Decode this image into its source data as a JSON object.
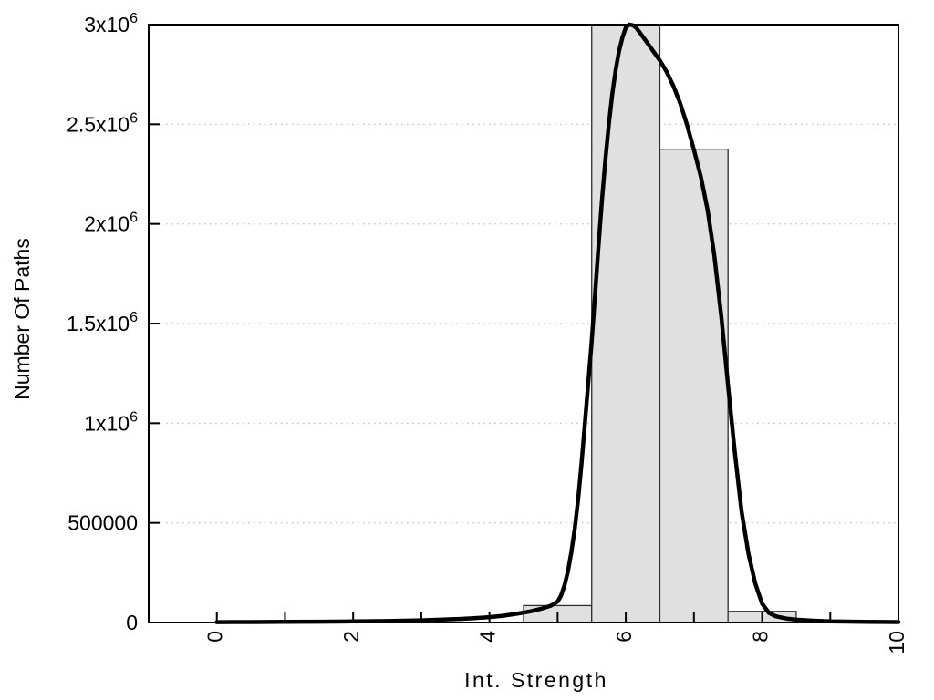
{
  "chart_data": {
    "type": "bar",
    "subtype": "histogram-with-fit-curve",
    "title": "",
    "xlabel": "Int. Strength",
    "ylabel": "Number Of Paths",
    "xlim": [
      -1,
      10
    ],
    "ylim": [
      0,
      3000000
    ],
    "grid": "horizontal-dotted",
    "legend": "none",
    "x_tick_label_rotation": -90,
    "x_ticks": [
      {
        "value": 0,
        "label": "0"
      },
      {
        "value": 1,
        "label": ""
      },
      {
        "value": 2,
        "label": "2"
      },
      {
        "value": 3,
        "label": ""
      },
      {
        "value": 4,
        "label": "4"
      },
      {
        "value": 5,
        "label": ""
      },
      {
        "value": 6,
        "label": "6"
      },
      {
        "value": 7,
        "label": ""
      },
      {
        "value": 8,
        "label": "8"
      },
      {
        "value": 9,
        "label": ""
      },
      {
        "value": 10,
        "label": "10"
      }
    ],
    "y_ticks": [
      {
        "value": 0,
        "label": "0",
        "sup": ""
      },
      {
        "value": 500000,
        "label": "500000",
        "sup": ""
      },
      {
        "value": 1000000,
        "label": "1x10",
        "sup": "6"
      },
      {
        "value": 1500000,
        "label": "1.5x10",
        "sup": "6"
      },
      {
        "value": 2000000,
        "label": "2x10",
        "sup": "6"
      },
      {
        "value": 2500000,
        "label": "2.5x10",
        "sup": "6"
      },
      {
        "value": 3000000,
        "label": "3x10",
        "sup": "6"
      }
    ],
    "bars": [
      {
        "x_left": 4.5,
        "x_right": 5.5,
        "count": 85000
      },
      {
        "x_left": 5.5,
        "x_right": 6.5,
        "count": 3000000
      },
      {
        "x_left": 6.5,
        "x_right": 7.5,
        "count": 2375000
      },
      {
        "x_left": 7.5,
        "x_right": 8.5,
        "count": 56000
      }
    ],
    "curve_points": [
      [
        0,
        2000
      ],
      [
        0.5,
        2500
      ],
      [
        1,
        3200
      ],
      [
        1.5,
        4200
      ],
      [
        2,
        5500
      ],
      [
        2.5,
        7500
      ],
      [
        3,
        11000
      ],
      [
        3.5,
        17000
      ],
      [
        3.75,
        21000
      ],
      [
        4,
        27000
      ],
      [
        4.2,
        34000
      ],
      [
        4.4,
        44000
      ],
      [
        4.6,
        56000
      ],
      [
        4.75,
        68000
      ],
      [
        4.9,
        84000
      ],
      [
        5.0,
        105000
      ],
      [
        5.05,
        135000
      ],
      [
        5.1,
        185000
      ],
      [
        5.15,
        255000
      ],
      [
        5.2,
        350000
      ],
      [
        5.25,
        465000
      ],
      [
        5.3,
        615000
      ],
      [
        5.35,
        795000
      ],
      [
        5.4,
        1000000
      ],
      [
        5.45,
        1205000
      ],
      [
        5.5,
        1410000
      ],
      [
        5.55,
        1650000
      ],
      [
        5.6,
        1890000
      ],
      [
        5.65,
        2115000
      ],
      [
        5.7,
        2320000
      ],
      [
        5.75,
        2495000
      ],
      [
        5.8,
        2645000
      ],
      [
        5.85,
        2770000
      ],
      [
        5.9,
        2865000
      ],
      [
        5.95,
        2935000
      ],
      [
        6.0,
        2985000
      ],
      [
        6.05,
        3000000
      ],
      [
        6.1,
        2997000
      ],
      [
        6.15,
        2985000
      ],
      [
        6.2,
        2963000
      ],
      [
        6.3,
        2916000
      ],
      [
        6.4,
        2868000
      ],
      [
        6.5,
        2820000
      ],
      [
        6.6,
        2763000
      ],
      [
        6.7,
        2691000
      ],
      [
        6.8,
        2603000
      ],
      [
        6.9,
        2496000
      ],
      [
        7.0,
        2372000
      ],
      [
        7.1,
        2238000
      ],
      [
        7.2,
        2070000
      ],
      [
        7.3,
        1840000
      ],
      [
        7.4,
        1540000
      ],
      [
        7.5,
        1190000
      ],
      [
        7.6,
        850000
      ],
      [
        7.7,
        555000
      ],
      [
        7.8,
        345000
      ],
      [
        7.9,
        195000
      ],
      [
        8.0,
        95000
      ],
      [
        8.1,
        48000
      ],
      [
        8.2,
        31000
      ],
      [
        8.35,
        20000
      ],
      [
        8.5,
        14000
      ],
      [
        8.75,
        9000
      ],
      [
        9.0,
        6000
      ],
      [
        9.5,
        3500
      ],
      [
        10,
        2500
      ]
    ],
    "colors": {
      "background": "#ffffff",
      "bar_fill": "#e0e0e0",
      "bar_stroke": "#2e2e2e",
      "curve": "#000000",
      "axis": "#000000",
      "grid": "#c6c6c6",
      "text": "#000000"
    }
  }
}
